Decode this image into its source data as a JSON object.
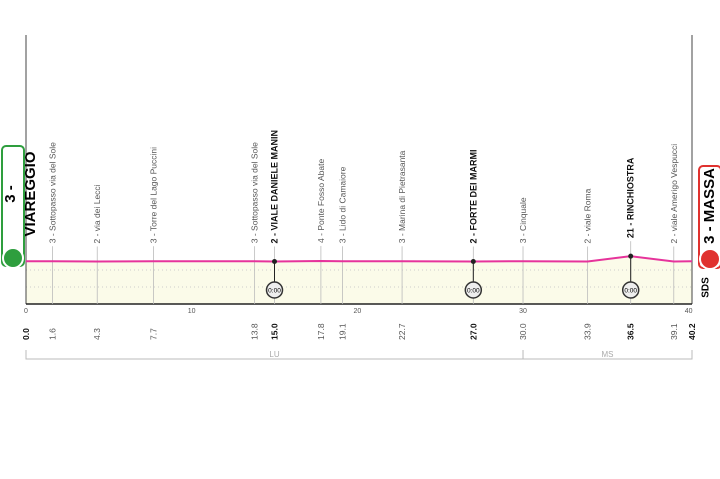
{
  "chart_data": {
    "type": "area",
    "xlabel": "",
    "ylabel": "",
    "xlim": [
      0,
      40.2
    ],
    "x_ticks": [
      "0",
      "10",
      "20",
      "30",
      "40"
    ],
    "start": {
      "label": "3 - VIAREGGIO",
      "color": "#2e9e3e",
      "icon": "bike-start-icon"
    },
    "finish": {
      "label": "3 - MASSA",
      "color": "#e0322f",
      "icon": "bike-finish-icon"
    },
    "line_color": "#e6339b",
    "fill_color": "#fbfbe9",
    "side_label": "SDS",
    "points": [
      {
        "km": "0.0",
        "x": 0,
        "ele": 3,
        "label": "",
        "bold": true
      },
      {
        "km": "1.6",
        "x": 1.6,
        "ele": 3,
        "label": "3 - Sottopasso via del Sole"
      },
      {
        "km": "4.3",
        "x": 4.3,
        "ele": 2,
        "label": "2 - via dei Lecci"
      },
      {
        "km": "7.7",
        "x": 7.7,
        "ele": 3,
        "label": "3 - Torre del Lago Puccini"
      },
      {
        "km": "13.8",
        "x": 13.8,
        "ele": 3,
        "label": "3 - Sottopasso via del Sole"
      },
      {
        "km": "15.0",
        "x": 15.0,
        "ele": 2,
        "label": "2 - VIALE DANIELE MANIN",
        "bold": true,
        "timecheck": "0:00"
      },
      {
        "km": "17.8",
        "x": 17.8,
        "ele": 4,
        "label": "4 - Ponte Fosso Abate"
      },
      {
        "km": "19.1",
        "x": 19.1,
        "ele": 3,
        "label": "3 - Lido di Camaiore"
      },
      {
        "km": "22.7",
        "x": 22.7,
        "ele": 3,
        "label": "3 - Marina di Pietrasanta"
      },
      {
        "km": "27.0",
        "x": 27.0,
        "ele": 2,
        "label": "2 - FORTE DEI MARMI",
        "bold": true,
        "timecheck": "0:00"
      },
      {
        "km": "30.0",
        "x": 30.0,
        "ele": 3,
        "label": "3 - Cinquale"
      },
      {
        "km": "33.9",
        "x": 33.9,
        "ele": 2,
        "label": "2 - viale Roma"
      },
      {
        "km": "36.5",
        "x": 36.5,
        "ele": 21,
        "label": "21 - RINCHIOSTRA",
        "bold": true,
        "timecheck": "0:00"
      },
      {
        "km": "39.1",
        "x": 39.1,
        "ele": 2,
        "label": "2 - viale Amerigo Vespucci"
      },
      {
        "km": "40.2",
        "x": 40.2,
        "ele": 3,
        "label": "",
        "bold": true
      }
    ],
    "provinces": [
      {
        "label": "LU",
        "from": 0,
        "to": 30
      },
      {
        "label": "MS",
        "from": 30,
        "to": 40.2
      }
    ]
  }
}
